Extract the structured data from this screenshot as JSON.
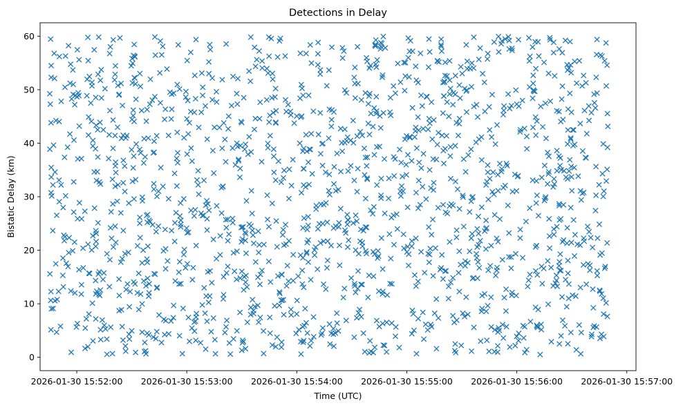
{
  "chart_data": {
    "type": "scatter",
    "title": "Detections in Delay",
    "xlabel": "Time (UTC)",
    "ylabel": "Bistatic Delay (km)",
    "marker": "x",
    "color": "#1f77b4",
    "xlim": [
      "2026-01-30 15:51:40",
      "2026-01-30 15:57:05"
    ],
    "ylim": [
      -2.5,
      62.5
    ],
    "xticks": [
      "2026-01-30 15:52:00",
      "2026-01-30 15:53:00",
      "2026-01-30 15:54:00",
      "2026-01-30 15:55:00",
      "2026-01-30 15:56:00",
      "2026-01-30 15:57:00"
    ],
    "yticks": [
      "0",
      "10",
      "20",
      "30",
      "40",
      "50",
      "60"
    ],
    "x_data_range": [
      "2026-01-30 15:51:45",
      "2026-01-30 15:56:50"
    ],
    "y_data_range": [
      0.5,
      60
    ],
    "point_count": 1600,
    "note": "Detections are uniformly scattered across the full time and delay range (random noise-like distribution)."
  }
}
